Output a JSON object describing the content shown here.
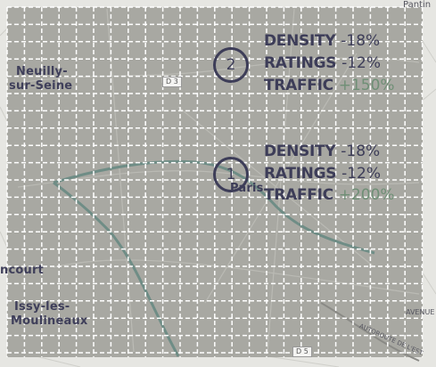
{
  "places": {
    "pantin": "Pantin",
    "neuilly_1": "Neuilly-",
    "neuilly_2": "sur-Seine",
    "paris": "Paris",
    "boulogne_fragment": "ncourt",
    "issy_1": "Issy-les-",
    "issy_2": "Moulineaux",
    "avenue_fragment": "AVENUE",
    "autoroute_fragment": "AUTOROUTE DE L'EST"
  },
  "roads": {
    "r1": "D 3",
    "r2": "D 5"
  },
  "zones": [
    {
      "number": "2",
      "stats": [
        {
          "label": "DENSITY",
          "value": "-18%",
          "positive": false
        },
        {
          "label": "RATINGS",
          "value": "-12%",
          "positive": false
        },
        {
          "label": "TRAFFIC",
          "value": "+150%",
          "positive": true
        }
      ]
    },
    {
      "number": "1",
      "stats": [
        {
          "label": "DENSITY",
          "value": "-18%",
          "positive": false
        },
        {
          "label": "RATINGS",
          "value": "-12%",
          "positive": false
        },
        {
          "label": "TRAFFIC",
          "value": "+200%",
          "positive": true
        }
      ]
    }
  ],
  "colors": {
    "grid_fill": "#a8a8a2",
    "grid_line": "#ffffff",
    "river": "#6f8d86",
    "text_dark": "#3d3d58",
    "positive": "#6f8f76"
  }
}
